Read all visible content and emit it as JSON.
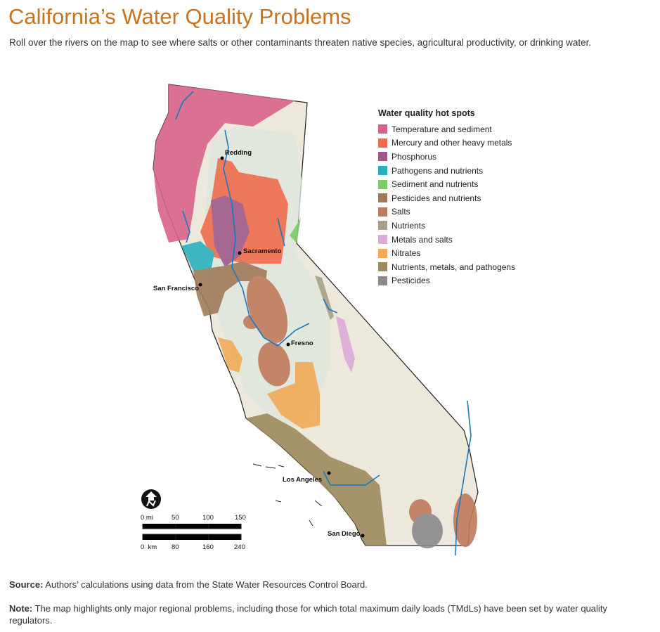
{
  "title": "California’s Water Quality Problems",
  "subtitle": "Roll over the rivers on the map to see where salts or other contaminants threaten native species, agricultural productivity, or drinking water.",
  "legend": {
    "title": "Water quality hot spots",
    "items": [
      {
        "label": "Temperature and sediment",
        "color": "#d9628a"
      },
      {
        "label": "Mercury and other heavy metals",
        "color": "#ef6b4c"
      },
      {
        "label": "Phosphorus",
        "color": "#a0588a"
      },
      {
        "label": "Pathogens and nutrients",
        "color": "#2bb0bf"
      },
      {
        "label": "Sediment and nutrients",
        "color": "#80c86c"
      },
      {
        "label": "Pesticides and nutrients",
        "color": "#a07a5a"
      },
      {
        "label": "Salts",
        "color": "#c0795a"
      },
      {
        "label": "Nutrients",
        "color": "#a8a088"
      },
      {
        "label": "Metals and salts",
        "color": "#deaad6"
      },
      {
        "label": "Nitrates",
        "color": "#f2aa55"
      },
      {
        "label": "Nutrients, metals, and pathogens",
        "color": "#9e8a5c"
      },
      {
        "label": "Pesticides",
        "color": "#8c8a8e"
      }
    ]
  },
  "cities": [
    "Redding",
    "Sacramento",
    "San Francisco",
    "Fresno",
    "Los Angeles",
    "San Diego"
  ],
  "scale": {
    "miles": [
      "0 mi",
      "50",
      "100",
      "150"
    ],
    "km": [
      "0  km",
      "80",
      "160",
      "240"
    ]
  },
  "source": {
    "label": "Source:",
    "text": " Authors’ calculations using data from the State Water Resources Control Board."
  },
  "note": {
    "label": "Note:",
    "text": " The map highlights only major regional problems, including those for which total maximum daily loads (TMdLs) have been set by water quality regulators."
  }
}
